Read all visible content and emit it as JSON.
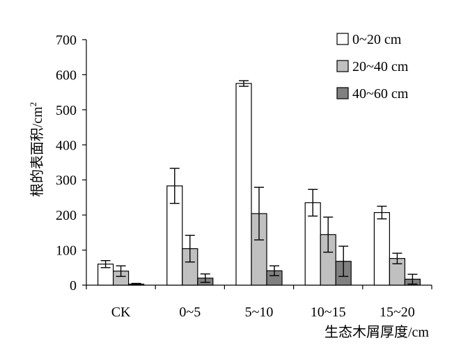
{
  "chart_data": {
    "type": "bar",
    "title": "",
    "xlabel": "生态木屑厚度/cm",
    "ylabel": "根的表面积/cm",
    "ylabel_sup": "2",
    "ylim": [
      0,
      700
    ],
    "yticks": [
      0,
      100,
      200,
      300,
      400,
      500,
      600,
      700
    ],
    "categories": [
      "CK",
      "0~5",
      "5~10",
      "10~15",
      "15~20"
    ],
    "series": [
      {
        "name": "0~20 cm",
        "color": "#ffffff",
        "values": [
          60,
          283,
          575,
          235,
          207
        ],
        "errors": [
          10,
          50,
          8,
          38,
          18
        ]
      },
      {
        "name": "20~40 cm",
        "color": "#c0c0c0",
        "values": [
          40,
          104,
          204,
          144,
          76
        ],
        "errors": [
          15,
          38,
          75,
          50,
          15
        ]
      },
      {
        "name": "40~60 cm",
        "color": "#808080",
        "values": [
          3,
          20,
          41,
          68,
          17
        ],
        "errors": [
          2,
          12,
          14,
          43,
          14
        ]
      }
    ],
    "legend": "top-right",
    "grid": false
  }
}
